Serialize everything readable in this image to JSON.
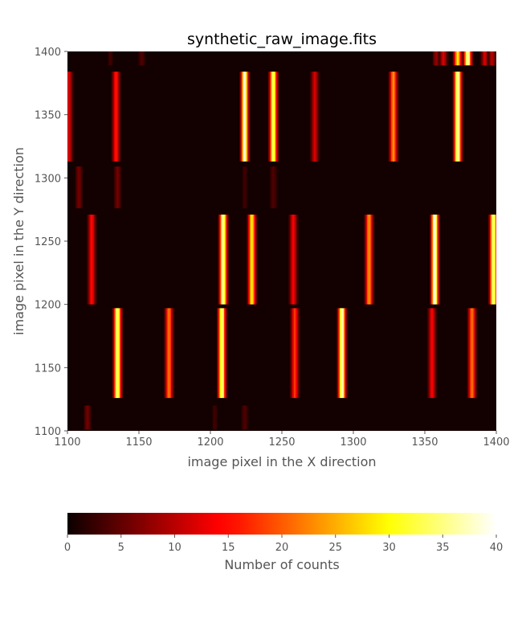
{
  "chart_data": {
    "type": "heatmap",
    "title": "synthetic_raw_image.fits",
    "xlabel": "image pixel in the X direction",
    "ylabel": "image pixel in the Y direction",
    "xlim": [
      1100,
      1400
    ],
    "ylim": [
      1100,
      1400
    ],
    "x_ticks": [
      "1100",
      "1150",
      "1200",
      "1250",
      "1300",
      "1350",
      "1400"
    ],
    "y_ticks": [
      "1100",
      "1150",
      "1200",
      "1250",
      "1300",
      "1350",
      "1400"
    ],
    "colormap": "hot",
    "colorbar": {
      "label": "Number of counts",
      "range": [
        0,
        40
      ],
      "ticks": [
        "0",
        "5",
        "10",
        "15",
        "20",
        "25",
        "30",
        "35",
        "40"
      ],
      "stops": [
        "#0b0000",
        "#ff0000",
        "#ffff00",
        "#ffffff"
      ]
    },
    "background_value": 0.5,
    "bands": [
      {
        "y0": 1101,
        "y1": 1120,
        "lines": [
          {
            "x": 1114,
            "v": 6
          },
          {
            "x": 1203,
            "v": 3
          },
          {
            "x": 1224,
            "v": 4
          }
        ]
      },
      {
        "y0": 1126,
        "y1": 1197,
        "lines": [
          {
            "x": 1135,
            "v": 38
          },
          {
            "x": 1171,
            "v": 22
          },
          {
            "x": 1208,
            "v": 37
          },
          {
            "x": 1259,
            "v": 18
          },
          {
            "x": 1292,
            "v": 39
          },
          {
            "x": 1355,
            "v": 14
          },
          {
            "x": 1383,
            "v": 22
          }
        ]
      },
      {
        "y0": 1200,
        "y1": 1271,
        "lines": [
          {
            "x": 1117,
            "v": 15
          },
          {
            "x": 1209,
            "v": 39
          },
          {
            "x": 1229,
            "v": 30
          },
          {
            "x": 1258,
            "v": 14
          },
          {
            "x": 1311,
            "v": 24
          },
          {
            "x": 1357,
            "v": 40
          },
          {
            "x": 1398,
            "v": 38
          }
        ]
      },
      {
        "y0": 1276,
        "y1": 1309,
        "lines": [
          {
            "x": 1108,
            "v": 6
          },
          {
            "x": 1135,
            "v": 6
          },
          {
            "x": 1224,
            "v": 3
          },
          {
            "x": 1244,
            "v": 4
          }
        ]
      },
      {
        "y0": 1313,
        "y1": 1384,
        "lines": [
          {
            "x": 1101,
            "v": 12
          },
          {
            "x": 1134,
            "v": 16
          },
          {
            "x": 1224,
            "v": 39
          },
          {
            "x": 1244,
            "v": 36
          },
          {
            "x": 1273,
            "v": 12
          },
          {
            "x": 1328,
            "v": 24
          },
          {
            "x": 1373,
            "v": 40
          }
        ]
      },
      {
        "y0": 1389,
        "y1": 1400,
        "lines": [
          {
            "x": 1130,
            "v": 3
          },
          {
            "x": 1152,
            "v": 4
          },
          {
            "x": 1358,
            "v": 8
          },
          {
            "x": 1363,
            "v": 12
          },
          {
            "x": 1373,
            "v": 30
          },
          {
            "x": 1380,
            "v": 40
          },
          {
            "x": 1392,
            "v": 12
          },
          {
            "x": 1397,
            "v": 10
          }
        ]
      }
    ]
  }
}
